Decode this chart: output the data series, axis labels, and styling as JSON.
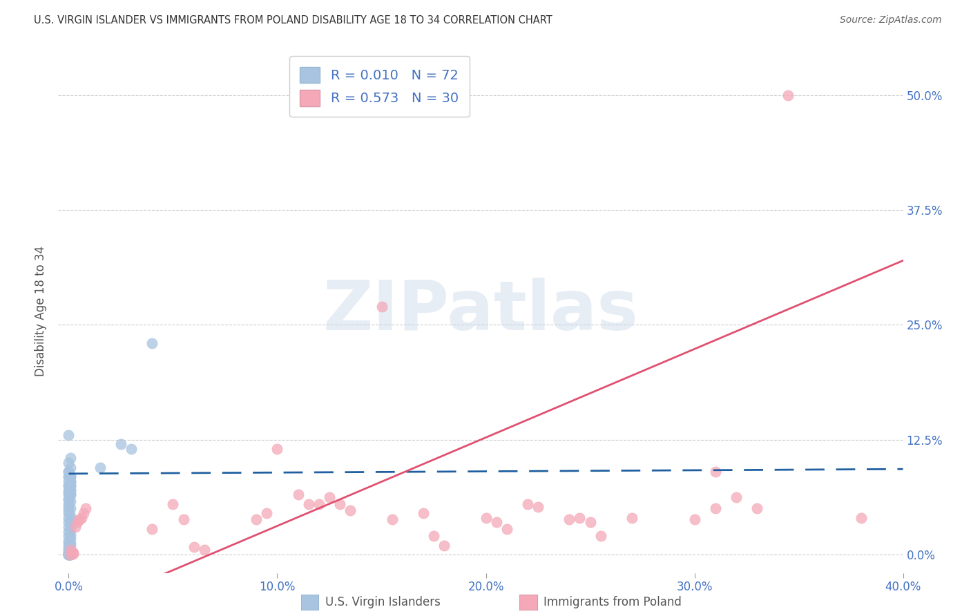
{
  "title": "U.S. VIRGIN ISLANDER VS IMMIGRANTS FROM POLAND DISABILITY AGE 18 TO 34 CORRELATION CHART",
  "source": "Source: ZipAtlas.com",
  "ylabel": "Disability Age 18 to 34",
  "x_tick_labels": [
    "0.0%",
    "10.0%",
    "20.0%",
    "30.0%",
    "40.0%"
  ],
  "x_tick_values": [
    0.0,
    0.1,
    0.2,
    0.3,
    0.4
  ],
  "y_tick_labels": [
    "0.0%",
    "12.5%",
    "25.0%",
    "37.5%",
    "50.0%"
  ],
  "y_tick_values": [
    0.0,
    0.125,
    0.25,
    0.375,
    0.5
  ],
  "xlim": [
    -0.005,
    0.4
  ],
  "ylim": [
    -0.02,
    0.55
  ],
  "blue_R": 0.01,
  "blue_N": 72,
  "pink_R": 0.573,
  "pink_N": 30,
  "blue_color": "#a8c4e0",
  "pink_color": "#f4a8b8",
  "blue_line_color": "#2060a0",
  "pink_line_color": "#e05070",
  "blue_line": [
    [
      0.0,
      0.088
    ],
    [
      0.4,
      0.093
    ]
  ],
  "pink_line": [
    [
      -0.005,
      -0.07
    ],
    [
      0.4,
      0.32
    ]
  ],
  "blue_scatter": [
    [
      0.0,
      0.13
    ],
    [
      0.001,
      0.105
    ],
    [
      0.001,
      0.095
    ],
    [
      0.0,
      0.1
    ],
    [
      0.0,
      0.09
    ],
    [
      0.001,
      0.085
    ],
    [
      0.0,
      0.085
    ],
    [
      0.001,
      0.08
    ],
    [
      0.0,
      0.075
    ],
    [
      0.001,
      0.075
    ],
    [
      0.0,
      0.07
    ],
    [
      0.001,
      0.07
    ],
    [
      0.0,
      0.065
    ],
    [
      0.001,
      0.065
    ],
    [
      0.0,
      0.06
    ],
    [
      0.001,
      0.058
    ],
    [
      0.0,
      0.055
    ],
    [
      0.0,
      0.052
    ],
    [
      0.001,
      0.05
    ],
    [
      0.0,
      0.048
    ],
    [
      0.0,
      0.045
    ],
    [
      0.001,
      0.042
    ],
    [
      0.0,
      0.04
    ],
    [
      0.001,
      0.038
    ],
    [
      0.0,
      0.035
    ],
    [
      0.001,
      0.032
    ],
    [
      0.0,
      0.03
    ],
    [
      0.001,
      0.028
    ],
    [
      0.0,
      0.025
    ],
    [
      0.001,
      0.022
    ],
    [
      0.0,
      0.02
    ],
    [
      0.001,
      0.018
    ],
    [
      0.0,
      0.015
    ],
    [
      0.001,
      0.013
    ],
    [
      0.0,
      0.012
    ],
    [
      0.001,
      0.01
    ],
    [
      0.0,
      0.008
    ],
    [
      0.0,
      0.006
    ],
    [
      0.001,
      0.005
    ],
    [
      0.0,
      0.003
    ],
    [
      0.001,
      0.003
    ],
    [
      0.0,
      0.002
    ],
    [
      0.0,
      0.001
    ],
    [
      0.0,
      0.0
    ],
    [
      0.001,
      0.0
    ],
    [
      0.0,
      0.001
    ],
    [
      0.001,
      0.0
    ],
    [
      0.0,
      0.0
    ],
    [
      0.0,
      0.09
    ],
    [
      0.0,
      0.085
    ],
    [
      0.001,
      0.085
    ],
    [
      0.0,
      0.08
    ],
    [
      0.001,
      0.08
    ],
    [
      0.001,
      0.075
    ],
    [
      0.0,
      0.075
    ],
    [
      0.001,
      0.07
    ],
    [
      0.0,
      0.068
    ],
    [
      0.001,
      0.065
    ],
    [
      0.0,
      0.06
    ],
    [
      0.04,
      0.23
    ],
    [
      0.025,
      0.12
    ],
    [
      0.03,
      0.115
    ],
    [
      0.015,
      0.095
    ],
    [
      0.0,
      0.0
    ],
    [
      0.001,
      0.001
    ],
    [
      0.001,
      0.002
    ],
    [
      0.0,
      0.0
    ],
    [
      0.001,
      0.001
    ],
    [
      0.0,
      0.0
    ],
    [
      0.001,
      0.0
    ]
  ],
  "pink_scatter": [
    [
      0.001,
      0.005
    ],
    [
      0.001,
      0.0
    ],
    [
      0.002,
      0.002
    ],
    [
      0.002,
      0.001
    ],
    [
      0.003,
      0.03
    ],
    [
      0.004,
      0.035
    ],
    [
      0.005,
      0.038
    ],
    [
      0.006,
      0.04
    ],
    [
      0.007,
      0.045
    ],
    [
      0.008,
      0.05
    ],
    [
      0.04,
      0.028
    ],
    [
      0.05,
      0.055
    ],
    [
      0.055,
      0.038
    ],
    [
      0.06,
      0.008
    ],
    [
      0.065,
      0.005
    ],
    [
      0.09,
      0.038
    ],
    [
      0.095,
      0.045
    ],
    [
      0.1,
      0.115
    ],
    [
      0.11,
      0.065
    ],
    [
      0.115,
      0.055
    ],
    [
      0.12,
      0.055
    ],
    [
      0.125,
      0.062
    ],
    [
      0.13,
      0.055
    ],
    [
      0.135,
      0.048
    ],
    [
      0.155,
      0.038
    ],
    [
      0.17,
      0.045
    ],
    [
      0.175,
      0.02
    ],
    [
      0.18,
      0.01
    ],
    [
      0.2,
      0.04
    ],
    [
      0.205,
      0.035
    ],
    [
      0.21,
      0.028
    ],
    [
      0.22,
      0.055
    ],
    [
      0.225,
      0.052
    ],
    [
      0.24,
      0.038
    ],
    [
      0.245,
      0.04
    ],
    [
      0.25,
      0.035
    ],
    [
      0.255,
      0.02
    ],
    [
      0.27,
      0.04
    ],
    [
      0.3,
      0.038
    ],
    [
      0.31,
      0.05
    ],
    [
      0.31,
      0.09
    ],
    [
      0.33,
      0.05
    ],
    [
      0.32,
      0.062
    ],
    [
      0.345,
      0.5
    ],
    [
      0.38,
      0.04
    ],
    [
      0.15,
      0.27
    ]
  ],
  "watermark": "ZIPatlas",
  "legend_labels": [
    "U.S. Virgin Islanders",
    "Immigrants from Poland"
  ],
  "title_color": "#333333",
  "axis_label_color": "#4472c4",
  "right_tick_color": "#4472c4"
}
